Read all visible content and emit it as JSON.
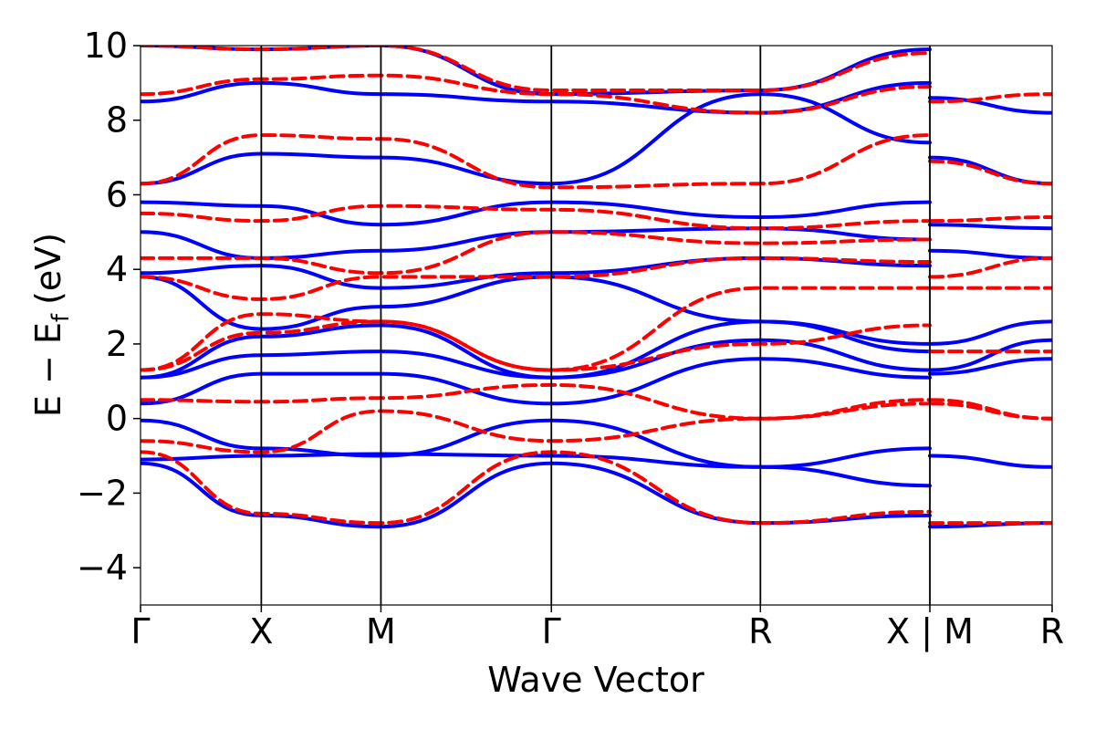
{
  "chart_data": {
    "type": "line",
    "title": "",
    "xlabel": "Wave Vector",
    "ylabel": "E − E",
    "ylabel_subscript": "f",
    "ylabel_unit": "(eV)",
    "ylim": [
      -5,
      10
    ],
    "yticks": [
      -4,
      -2,
      0,
      2,
      4,
      6,
      8,
      10
    ],
    "ytick_labels": [
      "−4",
      "−2",
      "0",
      "2",
      "4",
      "6",
      "8",
      "10"
    ],
    "x_range": [
      0,
      1
    ],
    "kpoints": [
      {
        "label": "Γ",
        "x": 0.0
      },
      {
        "label": "X",
        "x": 0.1325
      },
      {
        "label": "M",
        "x": 0.2637
      },
      {
        "label": "Γ",
        "x": 0.4507
      },
      {
        "label": "R",
        "x": 0.68
      },
      {
        "label": "X | M",
        "x": 0.8659
      },
      {
        "label": "R",
        "x": 1.0
      }
    ],
    "grid": false,
    "legend": "none",
    "series": [
      {
        "style": "solid",
        "color": "#0000ff",
        "bands": [
          {
            "x": [
              0,
              0.1325,
              0.2637,
              0.4507,
              0.68,
              0.8659
            ],
            "y": [
              -1.2,
              -2.6,
              -2.9,
              -1.2,
              -2.8,
              -2.6
            ]
          },
          {
            "x": [
              0.8659,
              1.0
            ],
            "y": [
              -2.9,
              -2.8
            ]
          },
          {
            "x": [
              0,
              0.1325,
              0.2637,
              0.4507,
              0.68,
              0.8659
            ],
            "y": [
              -1.1,
              -1.0,
              -0.95,
              -1.0,
              -1.3,
              -0.8
            ]
          },
          {
            "x": [
              0.8659,
              1.0
            ],
            "y": [
              -1.0,
              -1.3
            ]
          },
          {
            "x": [
              0,
              0.1325,
              0.2637,
              0.4507,
              0.68,
              0.8659
            ],
            "y": [
              -0.05,
              -0.8,
              -1.0,
              -0.05,
              -1.3,
              -1.8
            ]
          },
          {
            "x": [
              0,
              0.1325,
              0.2637,
              0.4507,
              0.68,
              0.8659
            ],
            "y": [
              0.4,
              1.2,
              1.2,
              0.4,
              1.6,
              1.1
            ]
          },
          {
            "x": [
              0.8659,
              1.0
            ],
            "y": [
              1.2,
              1.6
            ]
          },
          {
            "x": [
              0,
              0.1325,
              0.2637,
              0.4507,
              0.68,
              0.8659
            ],
            "y": [
              1.1,
              1.7,
              1.8,
              1.1,
              2.1,
              1.3
            ]
          },
          {
            "x": [
              0.8659,
              1.0
            ],
            "y": [
              1.3,
              2.1
            ]
          },
          {
            "x": [
              0,
              0.1325,
              0.2637,
              0.4507,
              0.68,
              0.8659
            ],
            "y": [
              1.1,
              2.2,
              2.5,
              1.1,
              2.6,
              1.8
            ]
          },
          {
            "x": [
              0.8659,
              1.0
            ],
            "y": [
              2.0,
              2.6
            ]
          },
          {
            "x": [
              0,
              0.1325,
              0.2637,
              0.4507,
              0.68,
              0.8659
            ],
            "y": [
              3.8,
              2.4,
              3.0,
              3.8,
              2.6,
              2.0
            ]
          },
          {
            "x": [
              0,
              0.1325,
              0.2637,
              0.4507,
              0.68,
              0.8659
            ],
            "y": [
              3.9,
              4.1,
              3.5,
              3.9,
              4.3,
              4.1
            ]
          },
          {
            "x": [
              0.8659,
              1.0
            ],
            "y": [
              4.5,
              4.3
            ]
          },
          {
            "x": [
              0,
              0.1325,
              0.2637,
              0.4507,
              0.68,
              0.8659
            ],
            "y": [
              5.0,
              4.3,
              4.5,
              5.0,
              5.1,
              4.8
            ]
          },
          {
            "x": [
              0,
              0.1325,
              0.2637,
              0.4507,
              0.68,
              0.8659
            ],
            "y": [
              5.8,
              5.7,
              5.2,
              5.8,
              5.4,
              5.8
            ]
          },
          {
            "x": [
              0.8659,
              1.0
            ],
            "y": [
              5.2,
              5.1
            ]
          },
          {
            "x": [
              0,
              0.1325,
              0.2637,
              0.4507,
              0.68,
              0.8659
            ],
            "y": [
              6.3,
              7.1,
              7.0,
              6.3,
              8.7,
              7.4
            ]
          },
          {
            "x": [
              0.8659,
              1.0
            ],
            "y": [
              7.0,
              6.3
            ]
          },
          {
            "x": [
              0,
              0.1325,
              0.2637,
              0.4507,
              0.68,
              0.8659
            ],
            "y": [
              8.5,
              9.0,
              8.7,
              8.5,
              8.2,
              9.0
            ]
          },
          {
            "x": [
              0.8659,
              1.0
            ],
            "y": [
              8.6,
              8.2
            ]
          },
          {
            "x": [
              0,
              0.1325,
              0.2637,
              0.4507,
              0.68,
              0.8659
            ],
            "y": [
              10.0,
              9.9,
              10.0,
              8.7,
              8.8,
              9.9
            ]
          }
        ]
      },
      {
        "style": "dashed",
        "color": "#ff0000",
        "bands": [
          {
            "x": [
              0,
              0.1325,
              0.2637,
              0.4507,
              0.68,
              0.8659
            ],
            "y": [
              -0.9,
              -2.55,
              -2.8,
              -0.9,
              -2.8,
              -2.5
            ]
          },
          {
            "x": [
              0.8659,
              1.0
            ],
            "y": [
              -2.8,
              -2.8
            ]
          },
          {
            "x": [
              0,
              0.1325,
              0.2637,
              0.4507,
              0.68,
              0.8659
            ],
            "y": [
              -0.6,
              -0.9,
              0.2,
              -0.6,
              0.0,
              0.5
            ]
          },
          {
            "x": [
              0.8659,
              1.0
            ],
            "y": [
              0.5,
              0.0
            ]
          },
          {
            "x": [
              0,
              0.1325,
              0.2637,
              0.4507,
              0.68,
              0.8659
            ],
            "y": [
              0.5,
              0.45,
              0.55,
              0.9,
              0.0,
              0.4
            ]
          },
          {
            "x": [
              0.8659,
              1.0
            ],
            "y": [
              0.4,
              0.0
            ]
          },
          {
            "x": [
              0,
              0.1325,
              0.2637,
              0.4507,
              0.68,
              0.8659
            ],
            "y": [
              1.3,
              2.3,
              2.6,
              1.3,
              2.0,
              2.5
            ]
          },
          {
            "x": [
              0.8659,
              1.0
            ],
            "y": [
              1.8,
              1.8
            ]
          },
          {
            "x": [
              0,
              0.1325,
              0.2637,
              0.4507,
              0.68,
              0.8659
            ],
            "y": [
              1.3,
              2.8,
              2.6,
              1.3,
              3.5,
              3.5
            ]
          },
          {
            "x": [
              0.8659,
              1.0
            ],
            "y": [
              3.5,
              3.5
            ]
          },
          {
            "x": [
              0,
              0.1325,
              0.2637,
              0.4507,
              0.68,
              0.8659
            ],
            "y": [
              3.8,
              3.2,
              3.8,
              3.8,
              4.3,
              4.2
            ]
          },
          {
            "x": [
              0.8659,
              1.0
            ],
            "y": [
              3.8,
              4.3
            ]
          },
          {
            "x": [
              0,
              0.1325,
              0.2637,
              0.4507,
              0.68,
              0.8659
            ],
            "y": [
              4.3,
              4.3,
              3.9,
              5.0,
              4.7,
              4.8
            ]
          },
          {
            "x": [
              0,
              0.1325,
              0.2637,
              0.4507,
              0.68,
              0.8659
            ],
            "y": [
              5.5,
              5.3,
              5.7,
              5.6,
              5.1,
              5.3
            ]
          },
          {
            "x": [
              0.8659,
              1.0
            ],
            "y": [
              5.3,
              5.4
            ]
          },
          {
            "x": [
              0,
              0.1325,
              0.2637,
              0.4507,
              0.68,
              0.8659
            ],
            "y": [
              6.3,
              7.6,
              7.5,
              6.2,
              6.3,
              7.6
            ]
          },
          {
            "x": [
              0.8659,
              1.0
            ],
            "y": [
              6.9,
              6.3
            ]
          },
          {
            "x": [
              0,
              0.1325,
              0.2637,
              0.4507,
              0.68,
              0.8659
            ],
            "y": [
              8.7,
              9.1,
              9.2,
              8.7,
              8.2,
              8.9
            ]
          },
          {
            "x": [
              0.8659,
              1.0
            ],
            "y": [
              8.5,
              8.7
            ]
          },
          {
            "x": [
              0,
              0.1325,
              0.2637,
              0.4507,
              0.68,
              0.8659
            ],
            "y": [
              10.0,
              9.9,
              10.0,
              8.8,
              8.8,
              9.8
            ]
          }
        ]
      }
    ]
  }
}
